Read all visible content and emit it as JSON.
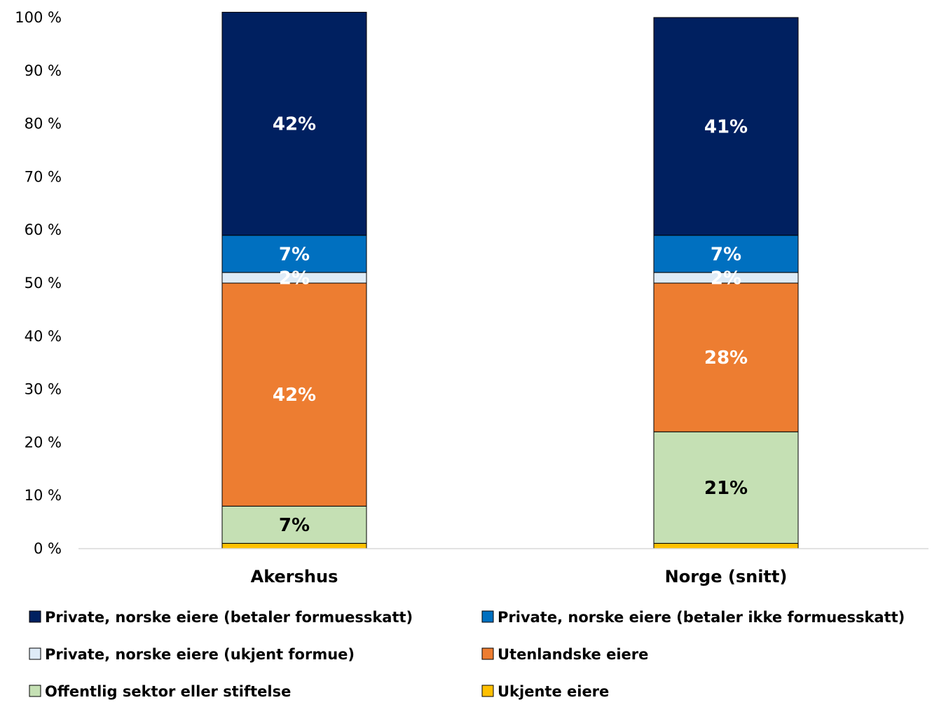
{
  "chart_data": {
    "type": "bar",
    "stacked": true,
    "categories": [
      "Akershus",
      "Norge (snitt)"
    ],
    "ylim": [
      0,
      100
    ],
    "yticks": [
      0,
      10,
      20,
      30,
      40,
      50,
      60,
      70,
      80,
      90,
      100
    ],
    "ytick_labels": [
      "0 %",
      "10 %",
      "20 %",
      "30 %",
      "40 %",
      "50 %",
      "60 %",
      "70 %",
      "80 %",
      "90 %",
      "100 %"
    ],
    "grid": false,
    "legend_position": "bottom",
    "series": [
      {
        "name": "Ukjente eiere",
        "color": "#FFC000",
        "values": [
          1,
          1
        ],
        "labels": [
          "",
          ""
        ],
        "label_color": "#000000"
      },
      {
        "name": "Offentlig sektor eller stiftelse",
        "color": "#C5E0B4",
        "values": [
          7,
          21
        ],
        "labels": [
          "7%",
          "21%"
        ],
        "label_color": "#000000"
      },
      {
        "name": "Utenlandske eiere",
        "color": "#ED7D31",
        "values": [
          42,
          28
        ],
        "labels": [
          "42%",
          "28%"
        ],
        "label_color": "#FFFFFF"
      },
      {
        "name": "Private, norske eiere (ukjent formue)",
        "color": "#DEEBF7",
        "values": [
          2,
          2
        ],
        "labels": [
          "2%",
          "2%"
        ],
        "label_color": "#FFFFFF"
      },
      {
        "name": "Private, norske eiere (betaler ikke formuesskatt)",
        "color": "#0070C0",
        "values": [
          7,
          7
        ],
        "labels": [
          "7%",
          "7%"
        ],
        "label_color": "#FFFFFF"
      },
      {
        "name": "Private, norske eiere (betaler formuesskatt)",
        "color": "#002060",
        "values": [
          42,
          41
        ],
        "labels": [
          "42%",
          "41%"
        ],
        "label_color": "#FFFFFF"
      }
    ],
    "legend_order": [
      "Private, norske eiere (betaler formuesskatt)",
      "Private, norske eiere (betaler ikke formuesskatt)",
      "Private, norske eiere (ukjent formue)",
      "Utenlandske eiere",
      "Offentlig sektor eller stiftelse",
      "Ukjente eiere"
    ]
  }
}
